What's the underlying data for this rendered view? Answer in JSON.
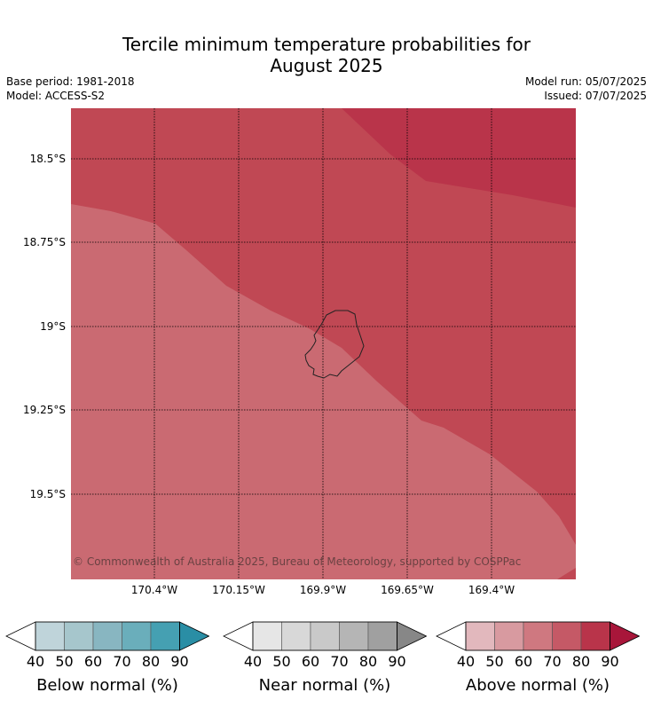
{
  "title": {
    "line1": "Tercile minimum temperature probabilities for",
    "line2": "August 2025"
  },
  "meta": {
    "base_period": "Base period: 1981-2018",
    "model": "Model: ACCESS-S2",
    "model_run": "Model run: 05/07/2025",
    "issued": "Issued: 07/07/2025"
  },
  "map": {
    "lat_labels": [
      "18.5°S",
      "18.75°S",
      "19°S",
      "19.25°S",
      "19.5°S"
    ],
    "lon_labels": [
      "170.4°W",
      "170.15°W",
      "169.9°W",
      "169.65°W",
      "169.4°W"
    ],
    "copyright": "© Commonwealth of Australia 2025, Bureau of Meteorology, supported by COSPPac",
    "colors": {
      "above_60_70": "#ca6a72",
      "above_70_80": "#c04854",
      "above_80_90": "#b9344a"
    }
  },
  "colorbars": [
    {
      "label": "Below normal (%)",
      "ticks": [
        "40",
        "50",
        "60",
        "70",
        "80",
        "90"
      ],
      "colors": [
        "#bfd4da",
        "#a6c6cc",
        "#88b6c1",
        "#6aaebb",
        "#45a0b2"
      ],
      "high_color": "#2a8ea5"
    },
    {
      "label": "Near normal (%)",
      "ticks": [
        "40",
        "50",
        "60",
        "70",
        "80",
        "90"
      ],
      "colors": [
        "#e6e6e6",
        "#d8d8d8",
        "#c9c9c9",
        "#b5b5b5",
        "#a0a0a0"
      ],
      "high_color": "#878787"
    },
    {
      "label": "Above normal (%)",
      "ticks": [
        "40",
        "50",
        "60",
        "70",
        "80",
        "90"
      ],
      "colors": [
        "#e2b8bd",
        "#d89aa0",
        "#cf7880",
        "#c55966",
        "#b9344a"
      ],
      "high_color": "#a8163a"
    }
  ]
}
